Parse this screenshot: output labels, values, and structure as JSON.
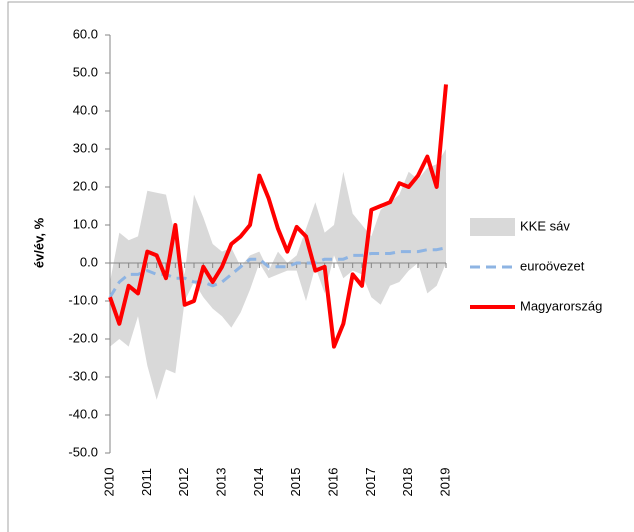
{
  "chart_data": {
    "type": "line",
    "y_label": "év/év, %",
    "categories": [
      "2010",
      null,
      null,
      null,
      "2011",
      null,
      null,
      null,
      "2012",
      null,
      null,
      null,
      "2013",
      null,
      null,
      null,
      "2014",
      null,
      null,
      null,
      "2015",
      null,
      null,
      null,
      "2016",
      null,
      null,
      null,
      "2017",
      null,
      null,
      null,
      "2018",
      null,
      null,
      null,
      "2019"
    ],
    "ylim": [
      -50,
      60
    ],
    "yticks": [
      {
        "value": 60,
        "label": "60.0"
      },
      {
        "value": 50,
        "label": "50.0"
      },
      {
        "value": 40,
        "label": "40.0"
      },
      {
        "value": 30,
        "label": "30.0"
      },
      {
        "value": 20,
        "label": "20.0"
      },
      {
        "value": 10,
        "label": "10.0"
      },
      {
        "value": 0,
        "label": "0.0"
      },
      {
        "value": -10,
        "label": "-10.0"
      },
      {
        "value": -20,
        "label": "-20.0"
      },
      {
        "value": -30,
        "label": "-30.0"
      },
      {
        "value": -40,
        "label": "-40.0"
      },
      {
        "value": -50,
        "label": "-50.0"
      }
    ],
    "series": [
      {
        "name": "KKE sáv",
        "color": "#d9d9d9",
        "kind": "band",
        "low": [
          -22,
          -20,
          -22,
          -14,
          -27,
          -36,
          -28,
          -29,
          -10,
          -5,
          -9,
          -12,
          -14,
          -17,
          -13,
          -7,
          0,
          -4,
          -3,
          -2,
          -2,
          -10,
          -1,
          -8,
          2,
          -4,
          -2,
          -3,
          -9,
          -11,
          -6,
          -5,
          -2,
          0,
          -8,
          -6,
          0
        ],
        "high": [
          -5,
          8,
          6,
          7,
          19,
          18.5,
          18,
          7,
          -3,
          18,
          12,
          5,
          3,
          4,
          -1,
          2,
          3,
          -2,
          3,
          0,
          2,
          9,
          16,
          8,
          10,
          24,
          13,
          10,
          7,
          14,
          16,
          18,
          24,
          22,
          25,
          26,
          30
        ]
      },
      {
        "name": "euroövezet",
        "color": "#8eb4e3",
        "kind": "dashed",
        "values": [
          -9,
          -5,
          -3,
          -3,
          -2,
          -3,
          -3,
          -4,
          -4,
          -5,
          -5,
          -6,
          -5,
          -3,
          -1,
          1,
          1,
          -1,
          -1,
          -1,
          0,
          0,
          0,
          1,
          1,
          1,
          2,
          2,
          2.5,
          2.5,
          2.5,
          3,
          3,
          3,
          3.5,
          3.5,
          4
        ]
      },
      {
        "name": "Magyarország",
        "color": "#ff0000",
        "kind": "solid",
        "values": [
          -9,
          -16,
          -6,
          -8,
          3,
          2,
          -4,
          10,
          -11,
          -10,
          -1,
          -5,
          -1,
          5,
          7,
          10,
          23,
          17,
          9,
          3,
          9.5,
          7,
          -2,
          -1,
          -22,
          -16,
          -3,
          -6,
          14,
          15,
          16,
          21,
          20,
          23,
          28,
          20,
          47
        ]
      }
    ]
  }
}
